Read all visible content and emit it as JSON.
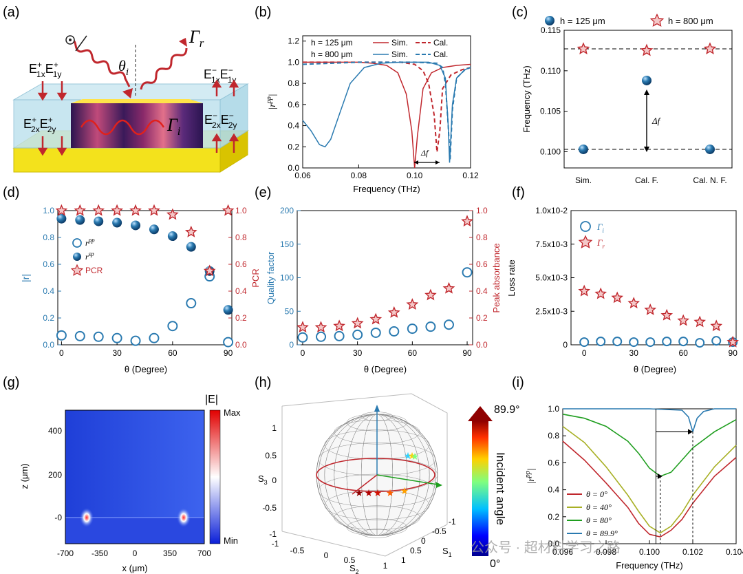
{
  "panel_labels": [
    "(a)",
    "(b)",
    "(c)",
    "(d)",
    "(e)",
    "(f)",
    "(g)",
    "(h)",
    "(i)"
  ],
  "colors": {
    "red": "#c0272d",
    "blue": "#2a7ab0",
    "darkred": "#b22222",
    "green": "#1f9e1f",
    "olive": "#a8b025"
  },
  "schematic": {
    "in_x": "E",
    "in_labels": [
      "1x",
      "1y"
    ],
    "in2_labels": [
      "2x",
      "2y"
    ],
    "gamma_r": "Γ",
    "gamma_r_sub": "r",
    "gamma_i": "Γ",
    "gamma_i_sub": "i",
    "theta": "θ",
    "theta_sub": "i"
  },
  "watermark": "公众号 · 超材料学习之路",
  "chart_data": [
    {
      "panel": "b",
      "type": "line",
      "xlabel": "Frequency (THz)",
      "ylabel": "|r^pp|",
      "xlim": [
        0.06,
        0.12
      ],
      "ylim": [
        0.0,
        1.25
      ],
      "xticks": [
        "0.06",
        "0.08",
        "0.10",
        "0.12"
      ],
      "yticks": [
        "0.0",
        "0.2",
        "0.4",
        "0.6",
        "0.8",
        "1.0",
        "1.2"
      ],
      "legend": [
        {
          "label": "h = 125 μm",
          "sim": "Sim.",
          "cal": "Cal.",
          "color": "#c0272d"
        },
        {
          "label": "h = 800 μm",
          "sim": "Sim.",
          "cal": "Cal.",
          "color": "#2a7ab0"
        }
      ],
      "annotation": "Δf",
      "series": [
        {
          "name": "h = 125 μm Sim.",
          "style": "solid",
          "color": "#c0272d",
          "x": [
            0.06,
            0.07,
            0.08,
            0.085,
            0.09,
            0.094,
            0.097,
            0.099,
            0.1,
            0.101,
            0.103,
            0.106,
            0.11,
            0.115,
            0.12
          ],
          "y": [
            1.0,
            1.0,
            1.0,
            0.99,
            0.97,
            0.9,
            0.7,
            0.35,
            0.0,
            0.3,
            0.75,
            0.9,
            0.95,
            0.97,
            0.98
          ]
        },
        {
          "name": "h = 125 μm Cal.",
          "style": "dashed",
          "color": "#c0272d",
          "x": [
            0.06,
            0.08,
            0.095,
            0.1,
            0.103,
            0.105,
            0.107,
            0.108,
            0.109,
            0.11,
            0.113,
            0.117,
            0.12
          ],
          "y": [
            1.0,
            1.0,
            1.0,
            0.98,
            0.92,
            0.8,
            0.5,
            0.15,
            0.35,
            0.75,
            0.88,
            0.93,
            0.95
          ]
        },
        {
          "name": "h = 800 μm Sim.",
          "style": "solid",
          "color": "#2a7ab0",
          "x": [
            0.06,
            0.063,
            0.066,
            0.068,
            0.07,
            0.073,
            0.077,
            0.082,
            0.088,
            0.095,
            0.105,
            0.109,
            0.111,
            0.112,
            0.1125,
            0.1135,
            0.115,
            0.118,
            0.12
          ],
          "y": [
            0.45,
            0.35,
            0.22,
            0.2,
            0.27,
            0.5,
            0.8,
            0.95,
            0.99,
            1.0,
            1.0,
            0.97,
            0.85,
            0.4,
            0.05,
            0.6,
            0.85,
            0.93,
            0.95
          ]
        },
        {
          "name": "h = 800 μm Cal.",
          "style": "dashed",
          "color": "#2a7ab0",
          "x": [
            0.06,
            0.08,
            0.1,
            0.108,
            0.11,
            0.111,
            0.112,
            0.1127,
            0.1135,
            0.115,
            0.118,
            0.12
          ],
          "y": [
            0.98,
            1.0,
            1.0,
            0.99,
            0.95,
            0.8,
            0.4,
            0.08,
            0.55,
            0.85,
            0.93,
            0.95
          ]
        }
      ]
    },
    {
      "panel": "c",
      "type": "scatter",
      "ylabel": "Frequency (THz)",
      "categories": [
        "Sim.",
        "Cal. F.",
        "Cal. N. F."
      ],
      "ylim": [
        0.098,
        0.115
      ],
      "yticks": [
        "0.100",
        "0.105",
        "0.110",
        "0.115"
      ],
      "annotation": "Δf",
      "series": [
        {
          "name": "h = 125 μm",
          "marker": "sphere",
          "values": [
            0.1003,
            0.1088,
            0.1003
          ]
        },
        {
          "name": "h = 800 μm",
          "marker": "star",
          "values": [
            0.1127,
            0.1125,
            0.1127
          ]
        }
      ]
    },
    {
      "panel": "d",
      "type": "scatter",
      "xlabel": "θ (Degree)",
      "ylabel": "|r|",
      "ylabel2": "PCR",
      "xlim": [
        -2,
        92
      ],
      "ylim": [
        0.0,
        1.0
      ],
      "ylim2": [
        0.0,
        1.0
      ],
      "xticks": [
        "0",
        "30",
        "60",
        "90"
      ],
      "yticks": [
        "0.0",
        "0.2",
        "0.4",
        "0.6",
        "0.8",
        "1.0"
      ],
      "x": [
        0,
        10,
        20,
        30,
        40,
        50,
        60,
        70,
        80,
        90
      ],
      "series": [
        {
          "name": "r^pp",
          "marker": "open-circle",
          "values": [
            0.07,
            0.065,
            0.06,
            0.05,
            0.03,
            0.05,
            0.14,
            0.31,
            0.51,
            0.02
          ]
        },
        {
          "name": "r^sp",
          "marker": "sphere",
          "values": [
            0.94,
            0.93,
            0.92,
            0.91,
            0.89,
            0.86,
            0.81,
            0.73,
            0.55,
            0.26
          ]
        },
        {
          "name": "PCR",
          "marker": "star",
          "axis": "right",
          "values": [
            1.0,
            1.0,
            1.0,
            1.0,
            1.0,
            1.0,
            0.97,
            0.84,
            0.55,
            1.0
          ]
        }
      ]
    },
    {
      "panel": "e",
      "type": "scatter",
      "xlabel": "θ (Degree)",
      "ylabel": "Quality factor",
      "ylabel2": "Peak absorbance",
      "xlim": [
        -3,
        93
      ],
      "ylim": [
        0,
        200
      ],
      "ylim2": [
        0.0,
        1.0
      ],
      "xticks": [
        "0",
        "30",
        "60",
        "90"
      ],
      "yticks": [
        "0",
        "50",
        "100",
        "150",
        "200"
      ],
      "yticks2": [
        "0.0",
        "0.2",
        "0.4",
        "0.6",
        "0.8",
        "1.0"
      ],
      "x": [
        0,
        10,
        20,
        30,
        40,
        50,
        60,
        70,
        80,
        90
      ],
      "series": [
        {
          "name": "Quality factor",
          "marker": "open-circle",
          "values": [
            11,
            12,
            13,
            15,
            18,
            20,
            24,
            27,
            30,
            108
          ]
        },
        {
          "name": "Peak absorbance",
          "marker": "star",
          "axis": "right",
          "values": [
            0.13,
            0.13,
            0.14,
            0.16,
            0.19,
            0.24,
            0.3,
            0.37,
            0.42,
            0.92
          ]
        }
      ]
    },
    {
      "panel": "f",
      "type": "scatter",
      "xlabel": "θ (Degree)",
      "ylabel": "Loss rate",
      "xlim": [
        -8,
        92
      ],
      "ylim": [
        0,
        0.01
      ],
      "xticks": [
        "0",
        "30",
        "60",
        "90"
      ],
      "yticks": [
        "0",
        "2.5x10-3",
        "5.0x10-3",
        "7.5x10-3",
        "1.0x10-2"
      ],
      "x": [
        0,
        10,
        20,
        30,
        40,
        50,
        60,
        70,
        80,
        90
      ],
      "series": [
        {
          "name": "Γi",
          "marker": "open-circle",
          "values": [
            0.0002,
            0.00025,
            0.00025,
            0.0002,
            0.0002,
            0.00025,
            0.00025,
            0.00015,
            0.0003,
            0.0002
          ]
        },
        {
          "name": "Γr",
          "marker": "star",
          "values": [
            0.004,
            0.0038,
            0.0035,
            0.0031,
            0.0026,
            0.0022,
            0.0018,
            0.0017,
            0.0014,
            0.0002
          ]
        }
      ]
    },
    {
      "panel": "g",
      "type": "heatmap",
      "xlabel": "x (μm)",
      "ylabel": "z (μm)",
      "xticks": [
        "-700",
        "-350",
        "0",
        "350",
        "700"
      ],
      "yticks": [
        "-0",
        "0",
        "200",
        "400"
      ],
      "colorbar_title": "|E|",
      "colorbar_max": "Max",
      "colorbar_min": "Min"
    },
    {
      "panel": "h",
      "type": "scatter",
      "xlabel": "S2",
      "ylabel": "S3",
      "zlabel": "S1",
      "yticks": [
        "-1",
        "-0.5",
        "0",
        "0.5",
        "1"
      ],
      "xticks": [
        "-1",
        "-0.5",
        "0",
        "0.5",
        "1"
      ],
      "zticks": [
        "1",
        "0.5",
        "0",
        "-0.5",
        "-1"
      ],
      "colorbar_title": "Incident angle",
      "colorbar_max": "89.9°",
      "colorbar_min": "0°"
    },
    {
      "panel": "i",
      "type": "line",
      "xlabel": "Frequency (THz)",
      "ylabel": "|r^pp|",
      "xlim": [
        0.096,
        0.104
      ],
      "ylim": [
        0.0,
        1.0
      ],
      "xticks": [
        "0.096",
        "0.098",
        "0.100",
        "0.102",
        "0.104"
      ],
      "yticks": [
        "0.0",
        "0.2",
        "0.4",
        "0.6",
        "0.8",
        "1.0"
      ],
      "series": [
        {
          "name": "θ = 0°",
          "color": "#c0272d",
          "x": [
            0.096,
            0.097,
            0.098,
            0.099,
            0.0995,
            0.1,
            0.1005,
            0.101,
            0.1015,
            0.102,
            0.103,
            0.104
          ],
          "y": [
            0.76,
            0.62,
            0.45,
            0.27,
            0.15,
            0.07,
            0.05,
            0.1,
            0.18,
            0.3,
            0.5,
            0.64
          ]
        },
        {
          "name": "θ = 40°",
          "color": "#a8b025",
          "x": [
            0.096,
            0.097,
            0.098,
            0.099,
            0.0995,
            0.1,
            0.1005,
            0.101,
            0.1015,
            0.102,
            0.103,
            0.104
          ],
          "y": [
            0.87,
            0.75,
            0.57,
            0.36,
            0.24,
            0.13,
            0.08,
            0.13,
            0.23,
            0.36,
            0.57,
            0.73
          ]
        },
        {
          "name": "θ = 80°",
          "color": "#1f9e1f",
          "x": [
            0.096,
            0.097,
            0.098,
            0.099,
            0.0995,
            0.1,
            0.1005,
            0.101,
            0.1015,
            0.102,
            0.103,
            0.104
          ],
          "y": [
            0.96,
            0.93,
            0.87,
            0.76,
            0.67,
            0.56,
            0.5,
            0.53,
            0.62,
            0.71,
            0.83,
            0.92
          ]
        },
        {
          "name": "θ = 89.9°",
          "color": "#2a7ab0",
          "x": [
            0.096,
            0.1,
            0.1015,
            0.1018,
            0.102,
            0.1022,
            0.1025,
            0.103,
            0.104
          ],
          "y": [
            1.0,
            1.0,
            0.99,
            0.94,
            0.83,
            0.93,
            0.98,
            1.0,
            1.0
          ]
        }
      ]
    }
  ]
}
